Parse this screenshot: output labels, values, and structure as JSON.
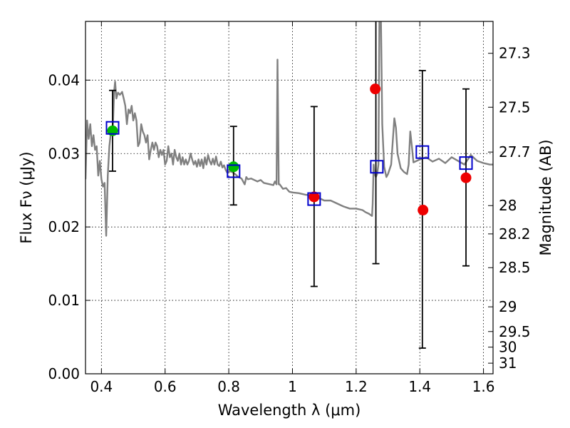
{
  "chart_data": {
    "type": "scatter",
    "xlabel": "Wavelength  λ (μm)",
    "ylabel": "Flux  Fν (μJy)",
    "y2label": "Magnitude (AB)",
    "xlim": [
      0.35,
      1.63
    ],
    "ylim": [
      0.0,
      0.048
    ],
    "grid": true,
    "x_ticks": [
      {
        "value": 0.4,
        "label": "0.4"
      },
      {
        "value": 0.6,
        "label": "0.6"
      },
      {
        "value": 0.8,
        "label": "0.8"
      },
      {
        "value": 1.0,
        "label": "1"
      },
      {
        "value": 1.2,
        "label": "1.2"
      },
      {
        "value": 1.4,
        "label": "1.4"
      },
      {
        "value": 1.6,
        "label": "1.6"
      }
    ],
    "y_ticks": [
      {
        "value": 0.0,
        "label": "0.00"
      },
      {
        "value": 0.01,
        "label": "0.01"
      },
      {
        "value": 0.02,
        "label": "0.02"
      },
      {
        "value": 0.03,
        "label": "0.03"
      },
      {
        "value": 0.04,
        "label": "0.04"
      }
    ],
    "mag_ticks": [
      {
        "value": 27.3,
        "label": "27.3"
      },
      {
        "value": 27.5,
        "label": "27.5"
      },
      {
        "value": 27.7,
        "label": "27.7"
      },
      {
        "value": 28.0,
        "label": "28"
      },
      {
        "value": 28.2,
        "label": "28.2"
      },
      {
        "value": 28.5,
        "label": "28.5"
      },
      {
        "value": 29.0,
        "label": "29"
      },
      {
        "value": 29.5,
        "label": "29.5"
      },
      {
        "value": 30.0,
        "label": "30"
      },
      {
        "value": 31.0,
        "label": "31"
      }
    ],
    "series": [
      {
        "name": "model spectrum",
        "style": "line",
        "color": "#808080",
        "points": [
          [
            0.35,
            0.0265
          ],
          [
            0.355,
            0.0345
          ],
          [
            0.36,
            0.032
          ],
          [
            0.365,
            0.034
          ],
          [
            0.37,
            0.031
          ],
          [
            0.375,
            0.0325
          ],
          [
            0.38,
            0.0305
          ],
          [
            0.385,
            0.031
          ],
          [
            0.39,
            0.027
          ],
          [
            0.395,
            0.029
          ],
          [
            0.4,
            0.0265
          ],
          [
            0.405,
            0.0255
          ],
          [
            0.41,
            0.026
          ],
          [
            0.415,
            0.0188
          ],
          [
            0.42,
            0.027
          ],
          [
            0.425,
            0.031
          ],
          [
            0.43,
            0.033
          ],
          [
            0.435,
            0.0325
          ],
          [
            0.44,
            0.0385
          ],
          [
            0.443,
            0.0398
          ],
          [
            0.447,
            0.0375
          ],
          [
            0.452,
            0.0383
          ],
          [
            0.458,
            0.038
          ],
          [
            0.465,
            0.0384
          ],
          [
            0.47,
            0.0375
          ],
          [
            0.475,
            0.0365
          ],
          [
            0.48,
            0.034
          ],
          [
            0.485,
            0.036
          ],
          [
            0.49,
            0.0355
          ],
          [
            0.495,
            0.0365
          ],
          [
            0.5,
            0.0345
          ],
          [
            0.505,
            0.0355
          ],
          [
            0.51,
            0.0345
          ],
          [
            0.515,
            0.031
          ],
          [
            0.52,
            0.0315
          ],
          [
            0.525,
            0.034
          ],
          [
            0.53,
            0.033
          ],
          [
            0.535,
            0.0325
          ],
          [
            0.54,
            0.0315
          ],
          [
            0.545,
            0.0325
          ],
          [
            0.55,
            0.0292
          ],
          [
            0.555,
            0.0305
          ],
          [
            0.56,
            0.0315
          ],
          [
            0.565,
            0.0305
          ],
          [
            0.57,
            0.0315
          ],
          [
            0.575,
            0.031
          ],
          [
            0.58,
            0.0295
          ],
          [
            0.585,
            0.0305
          ],
          [
            0.59,
            0.0298
          ],
          [
            0.595,
            0.0305
          ],
          [
            0.6,
            0.0285
          ],
          [
            0.605,
            0.029
          ],
          [
            0.61,
            0.031
          ],
          [
            0.615,
            0.0295
          ],
          [
            0.62,
            0.03
          ],
          [
            0.625,
            0.0285
          ],
          [
            0.63,
            0.0305
          ],
          [
            0.635,
            0.0295
          ],
          [
            0.64,
            0.029
          ],
          [
            0.645,
            0.03
          ],
          [
            0.65,
            0.0285
          ],
          [
            0.655,
            0.0295
          ],
          [
            0.66,
            0.0285
          ],
          [
            0.665,
            0.0292
          ],
          [
            0.67,
            0.0285
          ],
          [
            0.675,
            0.029
          ],
          [
            0.68,
            0.03
          ],
          [
            0.685,
            0.0292
          ],
          [
            0.69,
            0.0285
          ],
          [
            0.695,
            0.029
          ],
          [
            0.7,
            0.0282
          ],
          [
            0.705,
            0.0292
          ],
          [
            0.71,
            0.0283
          ],
          [
            0.715,
            0.0292
          ],
          [
            0.72,
            0.028
          ],
          [
            0.725,
            0.0295
          ],
          [
            0.73,
            0.0285
          ],
          [
            0.735,
            0.0298
          ],
          [
            0.74,
            0.029
          ],
          [
            0.745,
            0.0285
          ],
          [
            0.75,
            0.0293
          ],
          [
            0.755,
            0.0285
          ],
          [
            0.76,
            0.0296
          ],
          [
            0.765,
            0.0285
          ],
          [
            0.77,
            0.0283
          ],
          [
            0.775,
            0.0289
          ],
          [
            0.78,
            0.0281
          ],
          [
            0.785,
            0.0284
          ],
          [
            0.79,
            0.0278
          ],
          [
            0.795,
            0.0274
          ],
          [
            0.8,
            0.0276
          ],
          [
            0.81,
            0.0275
          ],
          [
            0.82,
            0.0272
          ],
          [
            0.83,
            0.0268
          ],
          [
            0.84,
            0.0266
          ],
          [
            0.845,
            0.0262
          ],
          [
            0.85,
            0.0258
          ],
          [
            0.855,
            0.0268
          ],
          [
            0.86,
            0.0265
          ],
          [
            0.87,
            0.0266
          ],
          [
            0.88,
            0.0264
          ],
          [
            0.89,
            0.0262
          ],
          [
            0.9,
            0.0264
          ],
          [
            0.91,
            0.026
          ],
          [
            0.92,
            0.0259
          ],
          [
            0.93,
            0.0258
          ],
          [
            0.94,
            0.0257
          ],
          [
            0.945,
            0.0262
          ],
          [
            0.95,
            0.0258
          ],
          [
            0.953,
            0.0428
          ],
          [
            0.957,
            0.0258
          ],
          [
            0.96,
            0.0258
          ],
          [
            0.97,
            0.0252
          ],
          [
            0.98,
            0.0253
          ],
          [
            0.99,
            0.0248
          ],
          [
            1.0,
            0.0247
          ],
          [
            1.02,
            0.0246
          ],
          [
            1.04,
            0.0244
          ],
          [
            1.06,
            0.0243
          ],
          [
            1.08,
            0.024
          ],
          [
            1.1,
            0.0236
          ],
          [
            1.12,
            0.0236
          ],
          [
            1.14,
            0.0232
          ],
          [
            1.16,
            0.0228
          ],
          [
            1.18,
            0.0225
          ],
          [
            1.2,
            0.0225
          ],
          [
            1.22,
            0.0223
          ],
          [
            1.23,
            0.022
          ],
          [
            1.24,
            0.0218
          ],
          [
            1.25,
            0.0215
          ],
          [
            1.252,
            0.0232
          ],
          [
            1.255,
            0.0285
          ],
          [
            1.258,
            0.0272
          ],
          [
            1.262,
            0.0268
          ],
          [
            1.266,
            0.0272
          ],
          [
            1.27,
            0.0285
          ],
          [
            1.273,
            0.048
          ],
          [
            1.278,
            0.048
          ],
          [
            1.282,
            0.034
          ],
          [
            1.288,
            0.0282
          ],
          [
            1.295,
            0.0268
          ],
          [
            1.3,
            0.0272
          ],
          [
            1.31,
            0.0285
          ],
          [
            1.32,
            0.0348
          ],
          [
            1.325,
            0.0335
          ],
          [
            1.33,
            0.03
          ],
          [
            1.34,
            0.028
          ],
          [
            1.35,
            0.0275
          ],
          [
            1.36,
            0.0272
          ],
          [
            1.365,
            0.0285
          ],
          [
            1.37,
            0.033
          ],
          [
            1.375,
            0.031
          ],
          [
            1.38,
            0.0288
          ],
          [
            1.4,
            0.0292
          ],
          [
            1.42,
            0.0295
          ],
          [
            1.44,
            0.0289
          ],
          [
            1.46,
            0.0293
          ],
          [
            1.48,
            0.0287
          ],
          [
            1.5,
            0.0295
          ],
          [
            1.52,
            0.029
          ],
          [
            1.54,
            0.0285
          ],
          [
            1.56,
            0.0298
          ],
          [
            1.58,
            0.029
          ],
          [
            1.6,
            0.0287
          ],
          [
            1.62,
            0.0285
          ],
          [
            1.63,
            0.0285
          ]
        ]
      },
      {
        "name": "green points",
        "style": "marker-circle",
        "color": "#00bb00",
        "points": [
          [
            0.435,
            0.0331
          ],
          [
            0.815,
            0.0282
          ]
        ]
      },
      {
        "name": "red points",
        "style": "marker-circle",
        "color": "#ee0000",
        "points": [
          [
            1.068,
            0.0241
          ],
          [
            1.26,
            0.0388
          ],
          [
            1.41,
            0.0223
          ],
          [
            1.545,
            0.0267
          ]
        ]
      },
      {
        "name": "open squares",
        "style": "marker-square",
        "color": "#0000cc",
        "points": [
          [
            0.435,
            0.0335
          ],
          [
            0.815,
            0.0276
          ],
          [
            1.068,
            0.0238
          ],
          [
            1.265,
            0.0282
          ],
          [
            1.408,
            0.0302
          ],
          [
            1.545,
            0.0287
          ]
        ]
      }
    ],
    "errorbars": [
      {
        "x": 0.435,
        "low": 0.0276,
        "high": 0.0386
      },
      {
        "x": 0.815,
        "low": 0.023,
        "high": 0.0337
      },
      {
        "x": 1.068,
        "low": 0.0119,
        "high": 0.0364
      },
      {
        "x": 1.262,
        "low": 0.015,
        "high": 0.05
      },
      {
        "x": 1.408,
        "low": 0.0035,
        "high": 0.0413
      },
      {
        "x": 1.545,
        "low": 0.0147,
        "high": 0.0388
      }
    ]
  }
}
